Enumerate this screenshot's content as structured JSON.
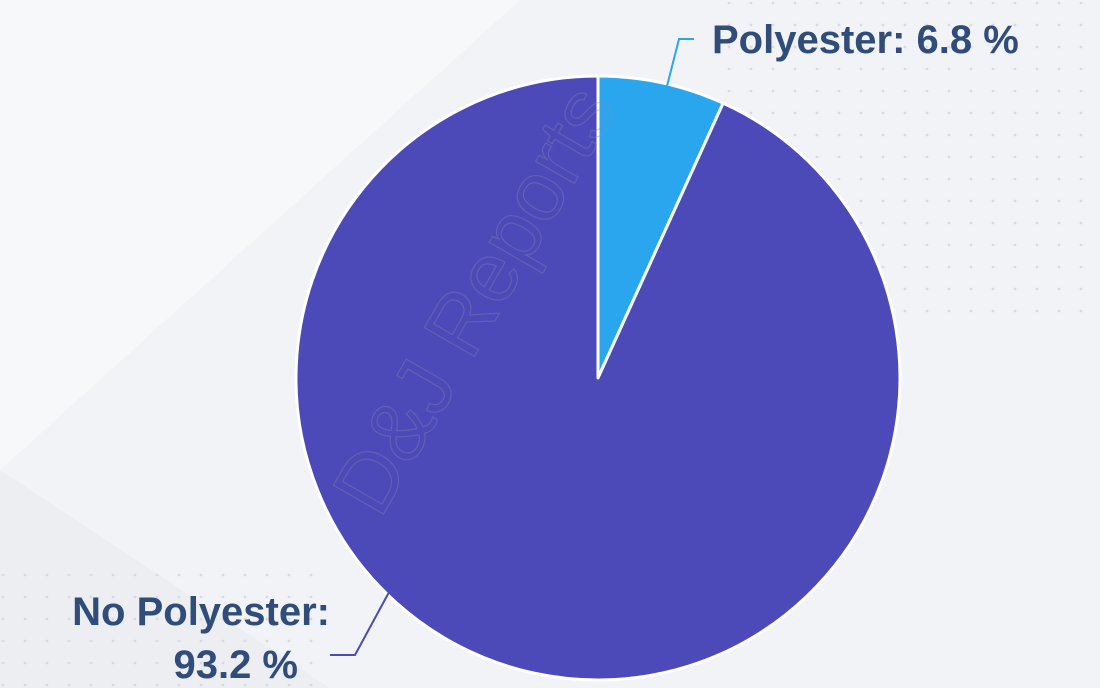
{
  "chart_data": {
    "type": "pie",
    "slices": [
      {
        "label": "Polyester",
        "value": 6.8,
        "display": "Polyester: 6.8 %",
        "color": "#2aa6ef"
      },
      {
        "label": "No Polyester",
        "value": 93.2,
        "display_line1": "No Polyester:",
        "display_line2": "93.2 %",
        "color": "#4c4ab8"
      }
    ],
    "legend": "none"
  },
  "watermark": "D&J Reports",
  "colors": {
    "background": "#f2f3f6",
    "label_text": "#2f4c7a",
    "slice_border": "#ffffff"
  }
}
